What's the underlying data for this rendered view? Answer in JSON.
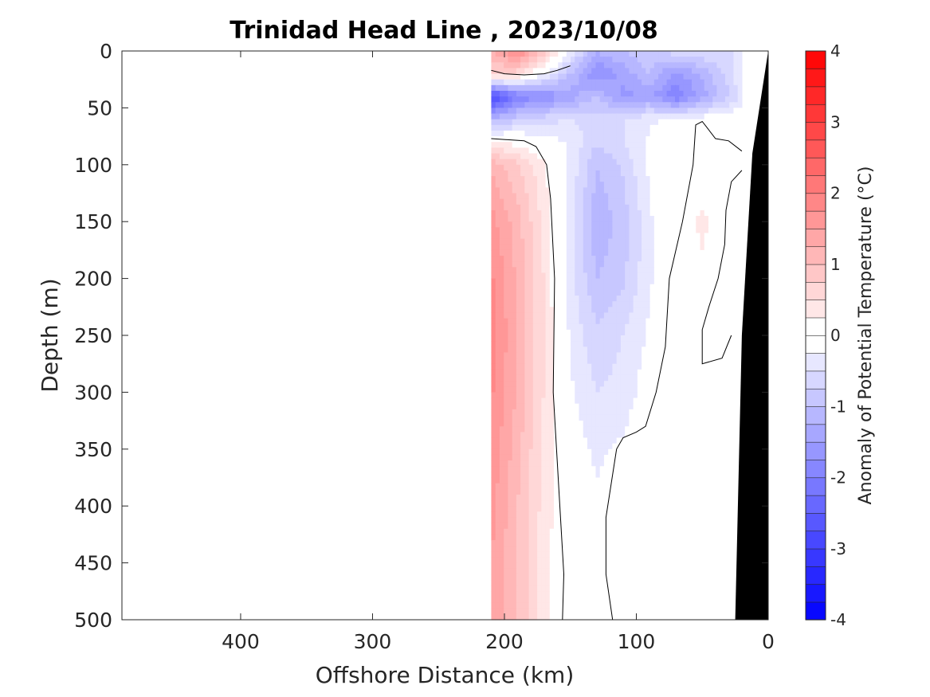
{
  "chart_data": {
    "type": "heatmap",
    "title": "Trinidad Head Line , 2023/10/08",
    "xlabel": "Offshore Distance (km)",
    "ylabel": "Depth (m)",
    "colorbar_label": "Anomaly of Potential Temperature (°C)",
    "xlim": [
      490,
      0
    ],
    "ylim": [
      0,
      500
    ],
    "x_reversed": true,
    "y_reversed": true,
    "xticks": [
      400,
      300,
      200,
      100,
      0
    ],
    "yticks": [
      0,
      50,
      100,
      150,
      200,
      250,
      300,
      350,
      400,
      450,
      500
    ],
    "colorbar": {
      "range": [
        -4,
        4
      ],
      "ticks": [
        -4,
        -3,
        -2,
        -1,
        0,
        1,
        2,
        3,
        4
      ],
      "step": 0.25,
      "colormap": "blue-white-red"
    },
    "data_extent_x": [
      210,
      20
    ],
    "x_stations": [
      210,
      190,
      170,
      150,
      130,
      110,
      90,
      70,
      50,
      30,
      20
    ],
    "y_depths": [
      0,
      20,
      40,
      60,
      80,
      100,
      150,
      200,
      250,
      300,
      350,
      400,
      450,
      500
    ],
    "anomaly": [
      [
        1.2,
        1.8,
        1.0,
        -0.3,
        -1.2,
        -1.0,
        -0.8,
        -0.6,
        -0.5,
        -0.6,
        -0.4
      ],
      [
        0.8,
        0.6,
        -0.2,
        -1.0,
        -1.8,
        -1.4,
        -1.0,
        -1.6,
        -1.2,
        -0.6,
        -0.3
      ],
      [
        -3.0,
        -2.0,
        -1.8,
        -1.4,
        -1.0,
        -1.6,
        -1.4,
        -2.0,
        -1.4,
        -0.8,
        -0.4
      ],
      [
        -1.2,
        -0.8,
        -0.6,
        -0.5,
        -0.6,
        -0.5,
        -0.3,
        -0.2,
        -0.1,
        0.0,
        0.0
      ],
      [
        0.3,
        0.1,
        -0.1,
        -0.3,
        -0.7,
        -0.5,
        -0.2,
        0.0,
        0.1,
        0.0,
        0.0
      ],
      [
        1.2,
        0.8,
        0.3,
        -0.3,
        -1.0,
        -0.7,
        -0.2,
        0.0,
        0.1,
        0.2,
        0.0
      ],
      [
        1.6,
        1.1,
        0.4,
        -0.4,
        -1.2,
        -0.9,
        -0.3,
        0.1,
        0.3,
        0.1,
        0.0
      ],
      [
        1.8,
        1.2,
        0.5,
        -0.4,
        -1.0,
        -0.8,
        -0.3,
        0.1,
        0.2,
        0.0,
        0.0
      ],
      [
        1.9,
        1.2,
        0.5,
        -0.3,
        -0.7,
        -0.5,
        -0.2,
        0.1,
        0.1,
        -0.2,
        0.0
      ],
      [
        1.8,
        1.2,
        0.5,
        -0.2,
        -0.5,
        -0.4,
        -0.1,
        0.1,
        0.1,
        0.1,
        0.2
      ],
      [
        1.7,
        1.1,
        0.4,
        -0.1,
        -0.3,
        -0.2,
        0.0,
        0.2,
        0.2,
        0.2,
        0.2
      ],
      [
        1.6,
        1.0,
        0.4,
        0.0,
        -0.2,
        -0.1,
        0.0,
        0.2,
        0.2,
        0.2,
        0.2
      ],
      [
        1.5,
        1.0,
        0.3,
        0.0,
        -0.1,
        0.0,
        0.0,
        0.1,
        0.2,
        0.1,
        0.1
      ],
      [
        1.5,
        1.0,
        0.3,
        0.0,
        0.0,
        0.0,
        0.0,
        0.1,
        0.1,
        0.1,
        0.1
      ]
    ],
    "bathymetry_km_at_depth": [
      [
        0,
        0
      ],
      [
        12,
        90
      ],
      [
        20,
        250
      ],
      [
        25,
        500
      ]
    ],
    "zero_contours": [
      [
        [
          210,
          17
        ],
        [
          200,
          20
        ],
        [
          185,
          21
        ],
        [
          170,
          20
        ],
        [
          160,
          17
        ],
        [
          150,
          13
        ]
      ],
      [
        [
          210,
          77
        ],
        [
          185,
          79
        ],
        [
          176,
          84
        ],
        [
          168,
          100
        ],
        [
          165,
          130
        ],
        [
          162,
          200
        ],
        [
          163,
          300
        ],
        [
          158,
          400
        ],
        [
          155,
          460
        ],
        [
          156,
          500
        ]
      ],
      [
        [
          20,
          88
        ],
        [
          30,
          79
        ],
        [
          40,
          77
        ],
        [
          46,
          68
        ],
        [
          50,
          62
        ],
        [
          55,
          65
        ],
        [
          57,
          100
        ],
        [
          65,
          150
        ],
        [
          75,
          200
        ],
        [
          78,
          260
        ],
        [
          85,
          300
        ],
        [
          93,
          330
        ],
        [
          100,
          335
        ],
        [
          110,
          340
        ],
        [
          115,
          350
        ],
        [
          123,
          410
        ],
        [
          123,
          460
        ],
        [
          118,
          500
        ]
      ],
      [
        [
          20,
          105
        ],
        [
          28,
          115
        ],
        [
          32,
          140
        ],
        [
          33,
          170
        ],
        [
          38,
          200
        ],
        [
          45,
          225
        ],
        [
          50,
          245
        ],
        [
          50,
          275
        ],
        [
          35,
          270
        ],
        [
          28,
          250
        ]
      ]
    ]
  }
}
